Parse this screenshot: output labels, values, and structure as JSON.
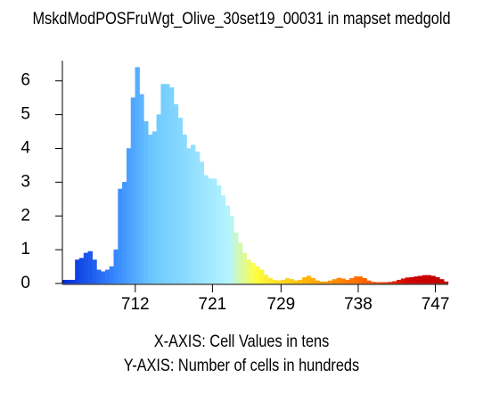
{
  "chart_data": {
    "type": "histogram",
    "title": "MskdModPOSFruWgt_Olive_30set19_00031 in mapset medgold",
    "x_label": "X-AXIS: Cell Values in tens",
    "y_label": "Y-AXIS: Number of cells in hundreds",
    "bins": [
      703.5,
      704,
      704.5,
      705,
      705.5,
      706,
      706.5,
      707,
      707.5,
      708,
      708.5,
      709,
      709.5,
      710,
      710.5,
      711,
      711.5,
      712,
      712.5,
      713,
      713.5,
      714,
      714.5,
      715,
      715.5,
      716,
      716.5,
      717,
      717.5,
      718,
      718.5,
      719,
      719.5,
      720,
      720.5,
      721,
      721.5,
      722,
      722.5,
      723,
      723.5,
      724,
      724.5,
      725,
      725.5,
      726,
      726.5,
      727,
      727.5,
      728,
      728.5,
      729,
      729.5,
      730,
      730.5,
      731,
      731.5,
      732,
      732.5,
      733,
      733.5,
      734,
      734.5,
      735,
      735.5,
      736,
      736.5,
      737,
      737.5,
      738,
      738.5,
      739,
      739.5,
      740,
      740.5,
      741,
      741.5,
      742,
      742.5,
      743,
      743.5,
      744,
      744.5,
      745,
      745.5,
      746,
      746.5,
      747,
      747.5,
      748,
      748.5
    ],
    "values": [
      0.1,
      0.1,
      0.1,
      0.7,
      0.75,
      0.9,
      0.95,
      0.7,
      0.4,
      0.35,
      0.4,
      0.5,
      1.0,
      2.8,
      3.0,
      4.0,
      5.5,
      6.4,
      5.6,
      4.8,
      4.4,
      4.5,
      5.0,
      5.9,
      5.9,
      5.8,
      5.3,
      4.9,
      4.4,
      4.0,
      4.1,
      3.9,
      3.6,
      3.2,
      3.1,
      3.1,
      2.9,
      2.6,
      2.3,
      2.0,
      1.5,
      1.2,
      0.9,
      0.7,
      0.6,
      0.5,
      0.4,
      0.25,
      0.15,
      0.1,
      0.08,
      0.1,
      0.15,
      0.12,
      0.08,
      0.1,
      0.18,
      0.22,
      0.15,
      0.08,
      0.05,
      0.05,
      0.08,
      0.12,
      0.16,
      0.14,
      0.1,
      0.15,
      0.2,
      0.2,
      0.15,
      0.08,
      0.04,
      0.03,
      0.03,
      0.03,
      0.04,
      0.06,
      0.1,
      0.14,
      0.17,
      0.18,
      0.2,
      0.22,
      0.24,
      0.24,
      0.22,
      0.18,
      0.12,
      0.05
    ],
    "color_scale": [
      {
        "value": 703.5,
        "color": "#0028d8"
      },
      {
        "value": 710,
        "color": "#3a8cff"
      },
      {
        "value": 714,
        "color": "#6cc8ff"
      },
      {
        "value": 723,
        "color": "#b4f4ff"
      },
      {
        "value": 726,
        "color": "#ffff40"
      },
      {
        "value": 732,
        "color": "#ffb400"
      },
      {
        "value": 739,
        "color": "#ff6000"
      },
      {
        "value": 744,
        "color": "#d00000"
      },
      {
        "value": 748.5,
        "color": "#c00000"
      }
    ],
    "xlim": [
      703.5,
      748.5
    ],
    "xticks": [
      712,
      721,
      729,
      738,
      747
    ],
    "ylim": [
      0,
      6.6
    ],
    "yticks": [
      0,
      1,
      2,
      3,
      4,
      5,
      6
    ]
  }
}
